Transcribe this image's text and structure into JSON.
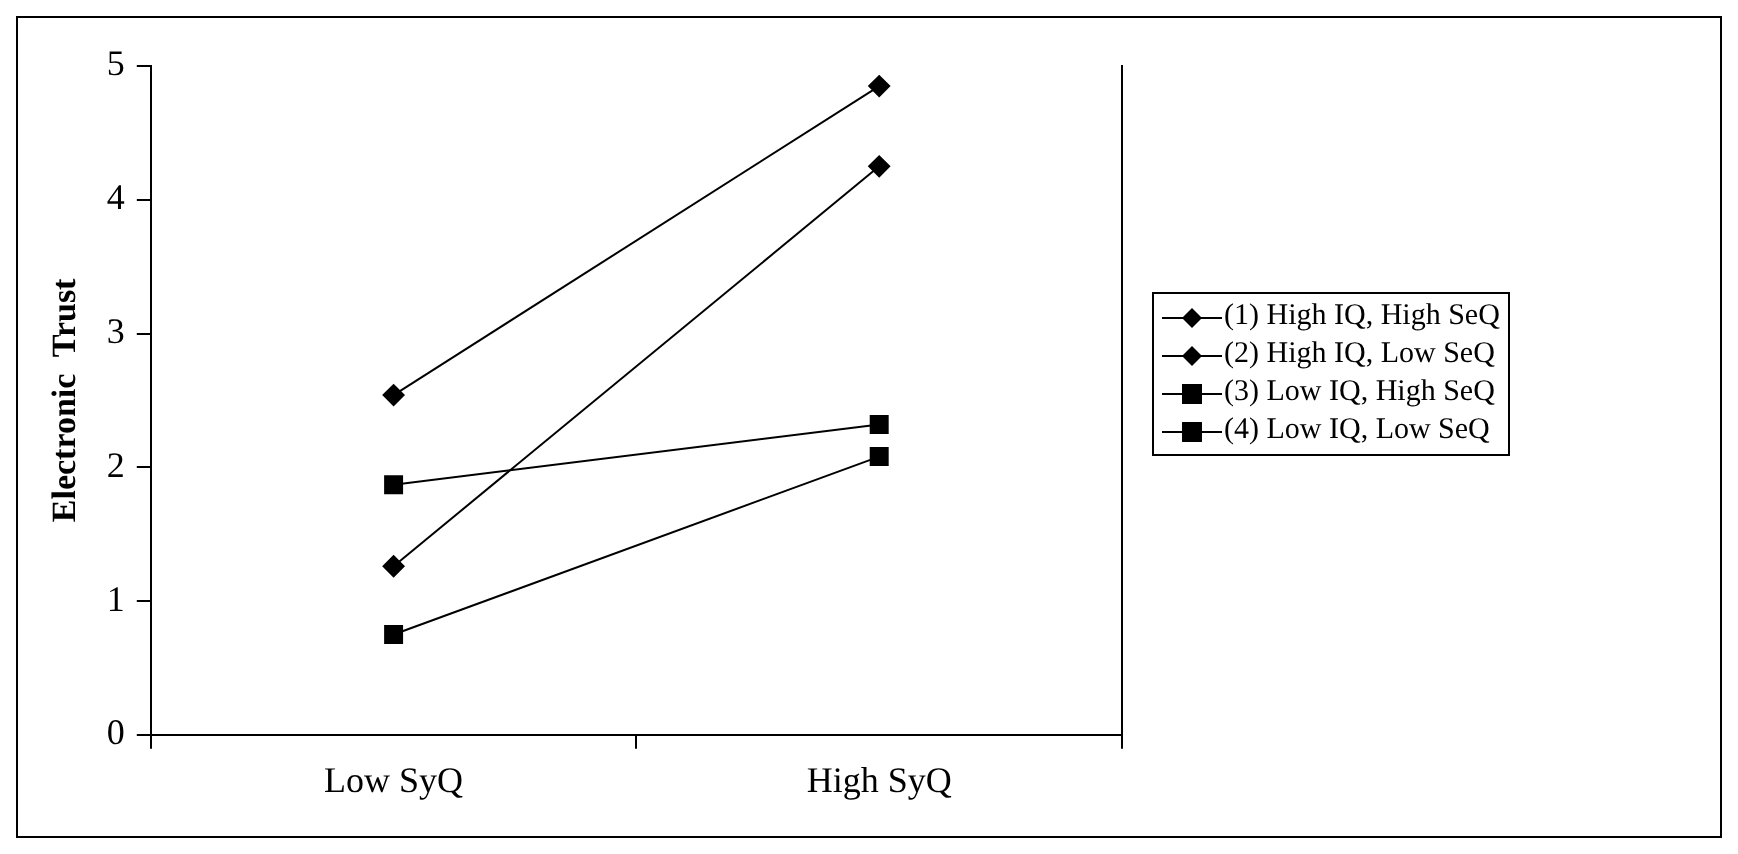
{
  "chart_data": {
    "type": "line",
    "ylabel": "Electronic  Trust",
    "categories": [
      "Low SyQ",
      "High SyQ"
    ],
    "series": [
      {
        "name": "(1) High IQ, High SeQ",
        "color": "#000000",
        "marker": "diamond",
        "values": [
          2.54,
          4.85
        ]
      },
      {
        "name": "(2) High IQ, Low SeQ",
        "color": "#000000",
        "marker": "diamond",
        "values": [
          1.26,
          4.25
        ]
      },
      {
        "name": "(3) Low IQ, High SeQ",
        "color": "#000000",
        "marker": "square",
        "values": [
          1.87,
          2.32
        ]
      },
      {
        "name": "(4) Low IQ, Low SeQ",
        "color": "#000000",
        "marker": "square",
        "values": [
          0.75,
          2.08
        ]
      }
    ],
    "ylim": [
      0,
      5
    ],
    "yticks": [
      0,
      1,
      2,
      3,
      4,
      5
    ],
    "grid": false,
    "legend": "right",
    "line_style": "solid"
  }
}
